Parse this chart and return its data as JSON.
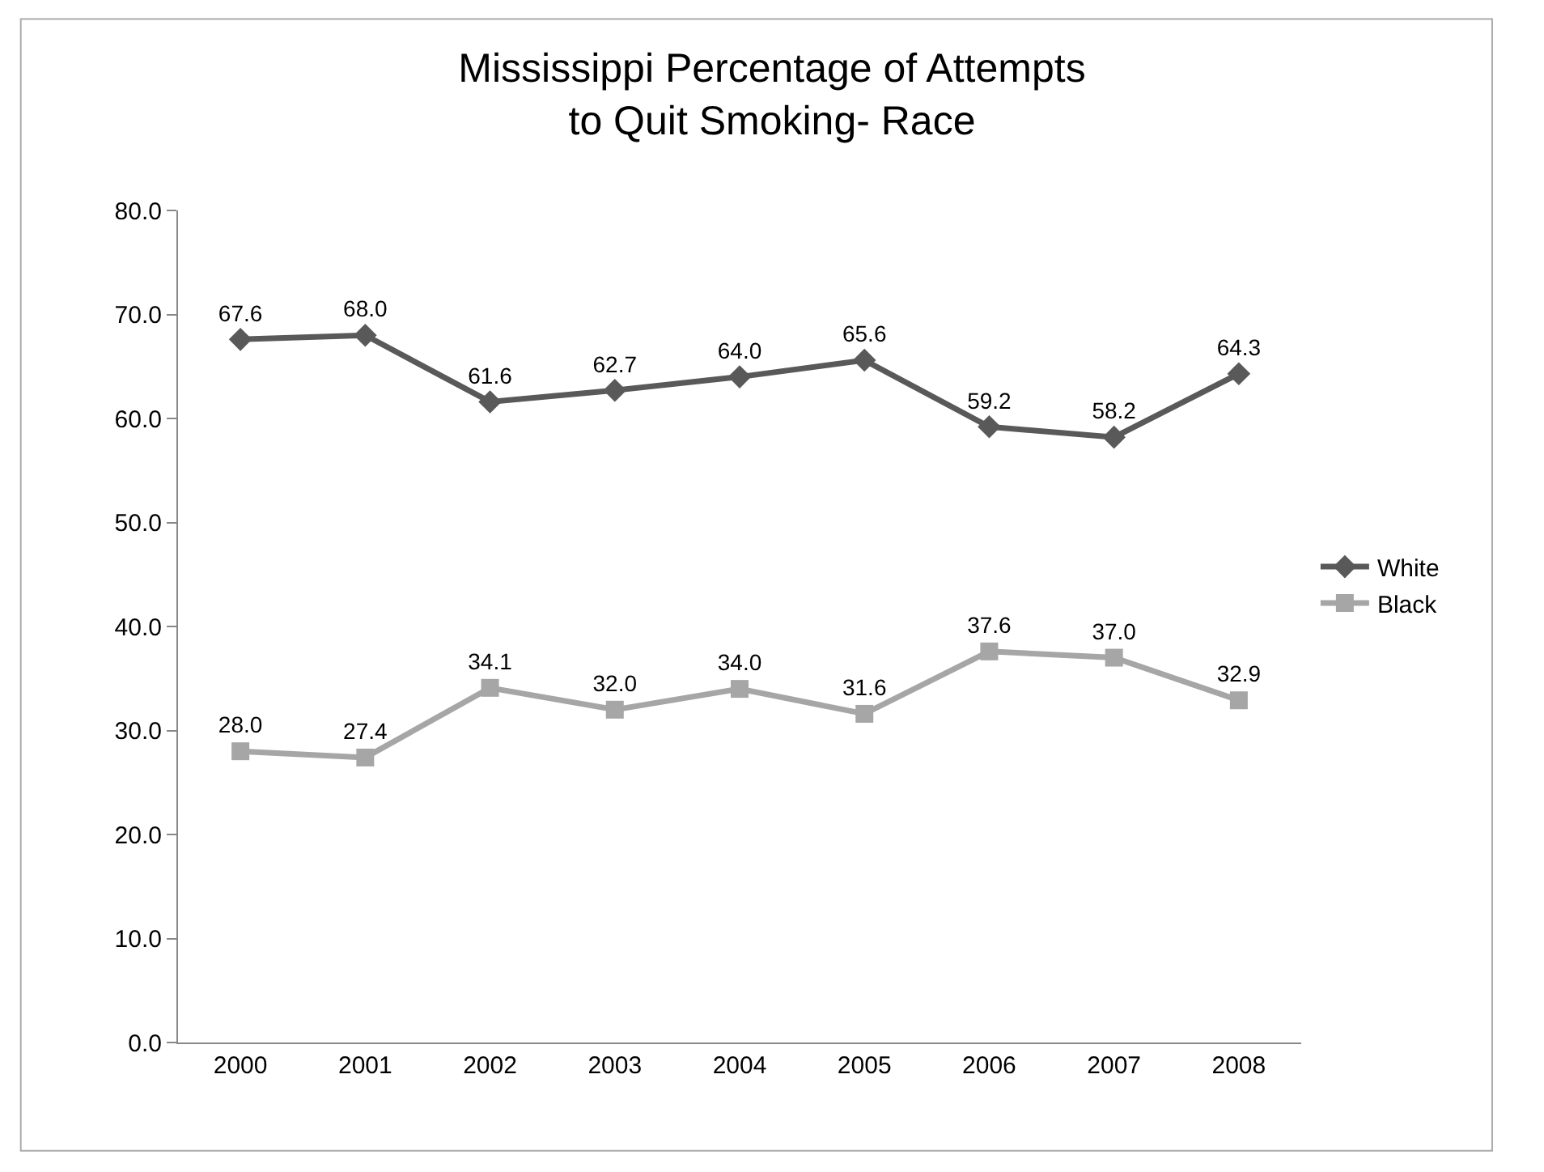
{
  "chart_data": {
    "type": "line",
    "title": "Mississippi Percentage of Attempts\nto Quit Smoking- Race",
    "categories": [
      "2000",
      "2001",
      "2002",
      "2003",
      "2004",
      "2005",
      "2006",
      "2007",
      "2008"
    ],
    "series": [
      {
        "name": "White",
        "color": "#595959",
        "marker": "diamond",
        "values": [
          67.6,
          68.0,
          61.6,
          62.7,
          64.0,
          65.6,
          59.2,
          58.2,
          64.3
        ],
        "value_labels": [
          "67.6",
          "68.0",
          "61.6",
          "62.7",
          "64.0",
          "65.6",
          "59.2",
          "58.2",
          "64.3"
        ]
      },
      {
        "name": "Black",
        "color": "#a6a6a6",
        "marker": "square",
        "values": [
          28.0,
          27.4,
          34.1,
          32.0,
          34.0,
          31.6,
          37.6,
          37.0,
          32.9
        ],
        "value_labels": [
          "28.0",
          "27.4",
          "34.1",
          "32.0",
          "34.0",
          "31.6",
          "37.6",
          "37.0",
          "32.9"
        ]
      }
    ],
    "ylim": [
      0,
      80
    ],
    "yticks": [
      {
        "value": 0,
        "label": "0.0"
      },
      {
        "value": 10,
        "label": "10.0"
      },
      {
        "value": 20,
        "label": "20.0"
      },
      {
        "value": 30,
        "label": "30.0"
      },
      {
        "value": 40,
        "label": "40.0"
      },
      {
        "value": 50,
        "label": "50.0"
      },
      {
        "value": 60,
        "label": "60.0"
      },
      {
        "value": 70,
        "label": "70.0"
      },
      {
        "value": 80,
        "label": "80.0"
      }
    ],
    "legend": "right",
    "line_style": "solid"
  }
}
